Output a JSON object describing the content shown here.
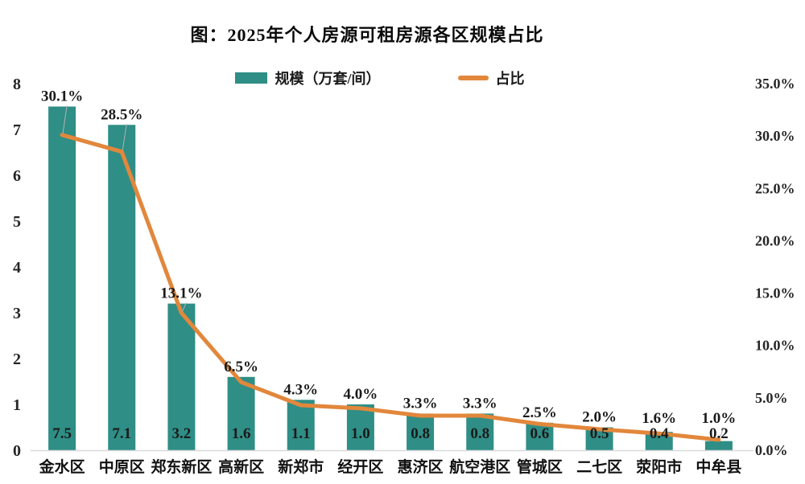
{
  "title": "图：2025年个人房源可租房源各区规模占比",
  "legend": {
    "bars": "规模（万套/间）",
    "line": "占比"
  },
  "colors": {
    "bar": "#2F8E86",
    "line": "#E2873B",
    "text": "#1a1a1a",
    "title": "#0a0a0a",
    "axis_line": "#d9d9d9",
    "leader_line": "#b3b3b3",
    "background": "#ffffff"
  },
  "chart_data": {
    "type": "bar",
    "subtype": "bar+line combo, dual axis",
    "title": "图：2025年个人房源可租房源各区规模占比",
    "categories": [
      "金水区",
      "中原区",
      "郑东新区",
      "高新区",
      "新郑市",
      "经开区",
      "惠济区",
      "航空港区",
      "管城区",
      "二七区",
      "荥阳市",
      "中牟县"
    ],
    "series": [
      {
        "name": "规模（万套/间）",
        "type": "bar",
        "axis": "left",
        "values": [
          7.5,
          7.1,
          3.2,
          1.6,
          1.1,
          1.0,
          0.8,
          0.8,
          0.6,
          0.5,
          0.4,
          0.2
        ],
        "data_labels": [
          "7.5",
          "7.1",
          "3.2",
          "1.6",
          "1.1",
          "1.0",
          "0.8",
          "0.8",
          "0.6",
          "0.5",
          "0.4",
          "0.2"
        ]
      },
      {
        "name": "占比",
        "type": "line",
        "axis": "right",
        "values": [
          30.1,
          28.5,
          13.1,
          6.5,
          4.3,
          4.0,
          3.3,
          3.3,
          2.5,
          2.0,
          1.6,
          1.0
        ],
        "data_labels": [
          "30.1%",
          "28.5%",
          "13.1%",
          "6.5%",
          "4.3%",
          "4.0%",
          "3.3%",
          "3.3%",
          "2.5%",
          "2.0%",
          "1.6%",
          "1.0%"
        ]
      }
    ],
    "left_axis": {
      "min": 0,
      "max": 8,
      "step": 1,
      "ticks": [
        "8",
        "7",
        "6",
        "5",
        "4",
        "3",
        "2",
        "1",
        "0"
      ]
    },
    "right_axis": {
      "min": 0,
      "max": 35,
      "step": 5,
      "ticks": [
        "35.0%",
        "30.0%",
        "25.0%",
        "20.0%",
        "15.0%",
        "10.0%",
        "5.0%",
        "0.0%"
      ]
    },
    "grid": false,
    "legend_position": "top"
  }
}
